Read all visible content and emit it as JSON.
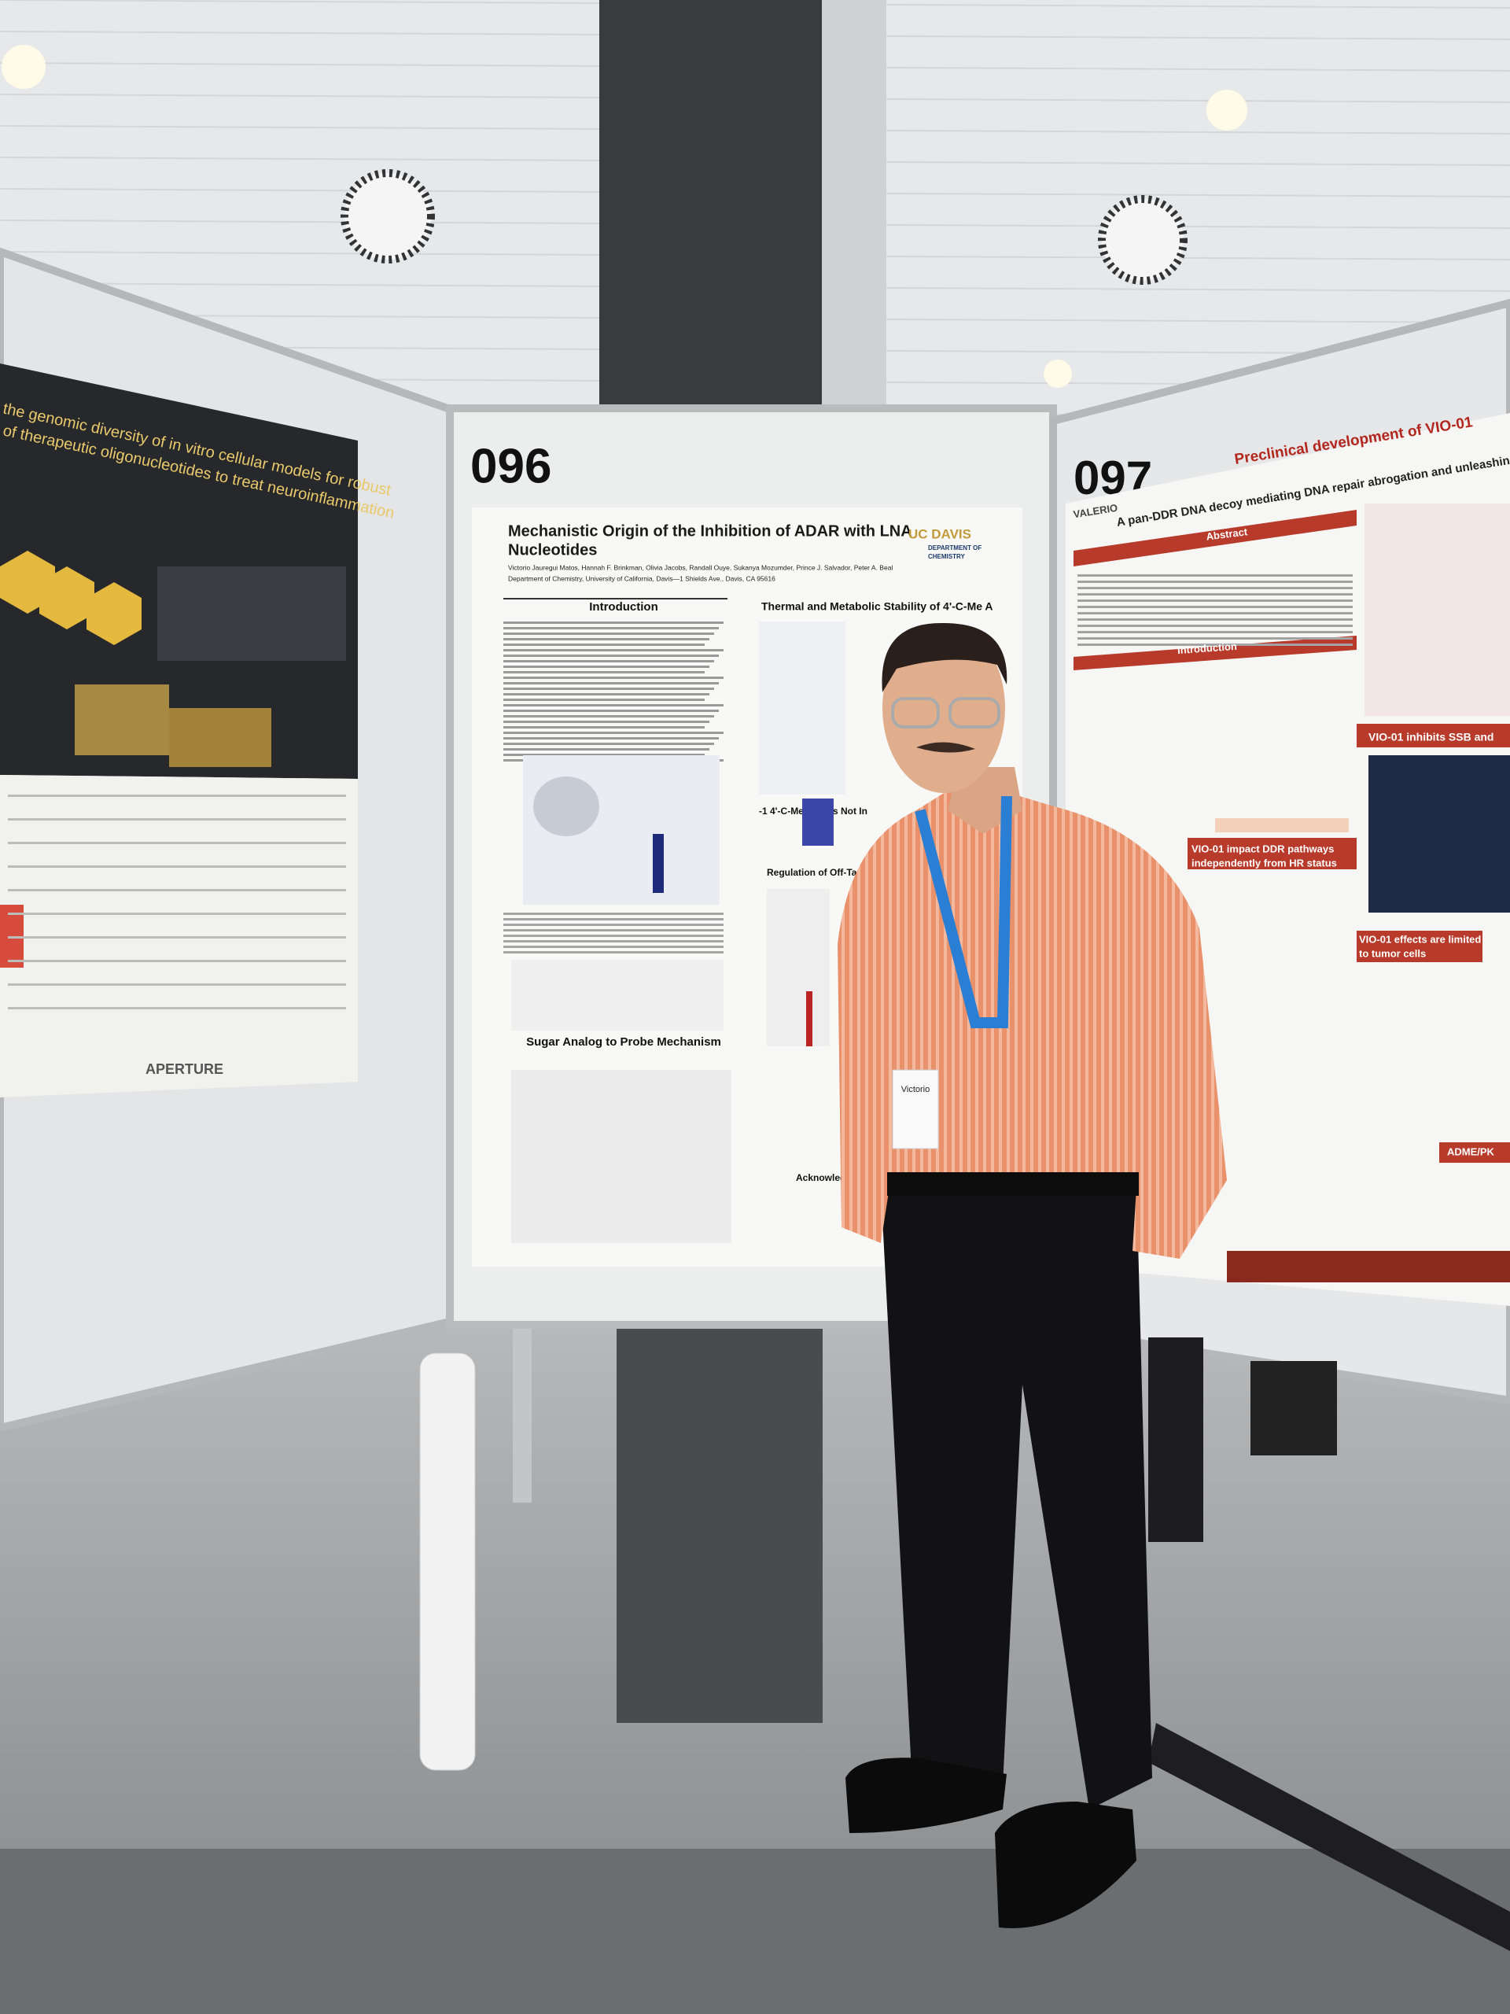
{
  "poster_096": {
    "number": "096",
    "title_lines": [
      "Mechanistic Origin of the Inhibition of ADAR with LNA",
      "Nucleotides"
    ],
    "authors": "Victorio Jauregui Matos, Hannah F. Brinkman, Olivia Jacobs, Randall Ouye, Sukanya Mozumder, Prince J. Salvador, Peter A. Beal",
    "department": "Department of Chemistry, University of California, Davis—1 Shields Ave., Davis, CA 95616",
    "logo": [
      "UC DAVIS",
      "DEPARTMENT OF",
      "CHEMISTRY"
    ],
    "sections": [
      "Introduction",
      "Thermal and Metabolic Stability of 4'-C-Me A",
      "-1 4'-C-Me A Does Not In",
      "Regulation of Off-Target E",
      "Sugar Analog to Probe Mechanism",
      "Acknowledgm"
    ]
  },
  "poster_097": {
    "number": "097",
    "title": "Preclinical development of VIO-01",
    "subtitle": "A pan-DDR DNA decoy mediating DNA repair abrogation and unleashing the an",
    "logo": "VALERIO",
    "sections": [
      "Abstract",
      "Introduction",
      "VIO-01 inhibits SSB and",
      "VIO-01 impact DDR pathways",
      "independently from HR status",
      "VIO-01 effects are limited",
      "to tumor cells",
      "ADME/PK"
    ]
  },
  "poster_left": {
    "title_lines": [
      "the genomic diversity of in vitro cellular models for robust",
      "of therapeutic oligonucleotides to treat neuroinflammation"
    ],
    "logo": "APERTURE"
  },
  "badge": "Victorio"
}
